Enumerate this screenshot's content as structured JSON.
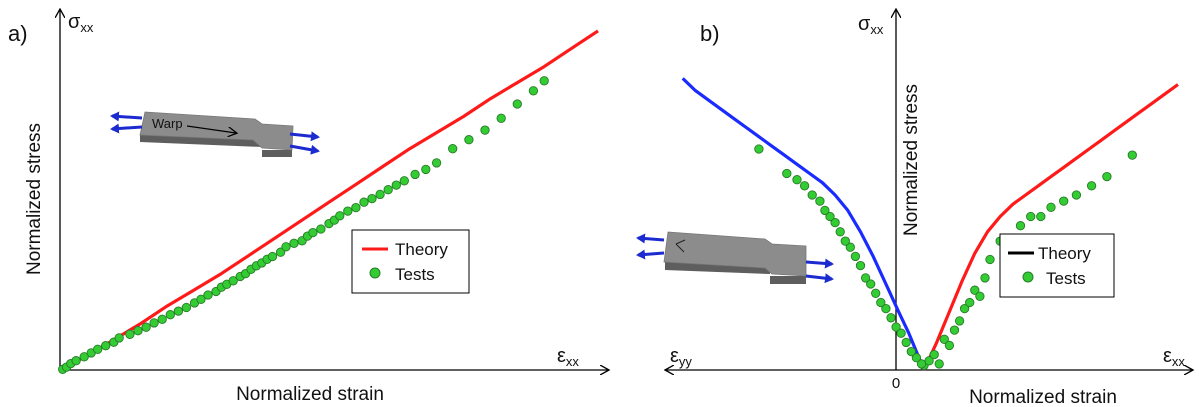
{
  "colors": {
    "theory_red": "#ff1a1a",
    "theory_blue": "#1a2bff",
    "tests_green": "#33cc33",
    "tests_edge": "#2a7a2a",
    "arrow_blue": "#1c2bd0",
    "specimen_gray": "#8c8c8c"
  },
  "chart_data": [
    {
      "panel_label": "a)",
      "type": "line",
      "xlabel": "Normalized strain",
      "ylabel": "Normalized stress",
      "x_axis_symbol": "ε",
      "x_axis_subscript": "xx",
      "y_axis_symbol": "σ",
      "y_axis_subscript": "xx",
      "xlim": [
        0,
        1
      ],
      "ylim": [
        0,
        1
      ],
      "grid": false,
      "legend_position": "center-right",
      "inset_label": "Warp",
      "series": [
        {
          "name": "Theory",
          "kind": "line",
          "color": "#ff1a1a",
          "x": [
            0,
            0.05,
            0.1,
            0.15,
            0.2,
            0.25,
            0.3,
            0.35,
            0.4,
            0.45,
            0.5,
            0.55,
            0.6,
            0.65,
            0.7,
            0.75,
            0.8,
            0.85,
            0.9,
            0.95,
            1.0
          ],
          "y": [
            0,
            0.04,
            0.085,
            0.13,
            0.18,
            0.225,
            0.27,
            0.32,
            0.37,
            0.42,
            0.47,
            0.52,
            0.57,
            0.62,
            0.665,
            0.71,
            0.76,
            0.805,
            0.85,
            0.9,
            0.95
          ]
        },
        {
          "name": "Tests",
          "kind": "scatter",
          "color": "#33cc33",
          "x": [
            0.005,
            0.012,
            0.02,
            0.03,
            0.045,
            0.058,
            0.07,
            0.085,
            0.1,
            0.11,
            0.13,
            0.145,
            0.16,
            0.175,
            0.19,
            0.205,
            0.22,
            0.235,
            0.25,
            0.262,
            0.275,
            0.29,
            0.3,
            0.31,
            0.322,
            0.335,
            0.345,
            0.355,
            0.365,
            0.375,
            0.385,
            0.395,
            0.41,
            0.42,
            0.435,
            0.45,
            0.46,
            0.47,
            0.485,
            0.5,
            0.51,
            0.52,
            0.535,
            0.55,
            0.565,
            0.58,
            0.595,
            0.61,
            0.625,
            0.64,
            0.66,
            0.68,
            0.7,
            0.73,
            0.76,
            0.79,
            0.82,
            0.85,
            0.88,
            0.9
          ],
          "y": [
            0.002,
            0.008,
            0.018,
            0.026,
            0.037,
            0.048,
            0.058,
            0.068,
            0.078,
            0.09,
            0.1,
            0.11,
            0.12,
            0.132,
            0.142,
            0.155,
            0.165,
            0.175,
            0.188,
            0.198,
            0.21,
            0.22,
            0.232,
            0.24,
            0.25,
            0.262,
            0.27,
            0.282,
            0.292,
            0.3,
            0.31,
            0.318,
            0.33,
            0.345,
            0.355,
            0.362,
            0.375,
            0.385,
            0.395,
            0.41,
            0.42,
            0.432,
            0.445,
            0.455,
            0.47,
            0.48,
            0.492,
            0.505,
            0.518,
            0.53,
            0.548,
            0.562,
            0.58,
            0.62,
            0.645,
            0.672,
            0.705,
            0.745,
            0.782,
            0.81
          ]
        }
      ]
    },
    {
      "panel_label": "b)",
      "type": "line",
      "xlabel": "Normalized strain",
      "ylabel": "Normalized stress",
      "x_axis_symbol": "ε",
      "x_axis_subscript": "xx",
      "x_axis_left_symbol": "ε",
      "x_axis_left_subscript": "yy",
      "y_axis_symbol": "σ",
      "y_axis_subscript": "xx",
      "origin_label": "0",
      "xlim": [
        -1,
        1
      ],
      "ylim": [
        0,
        1
      ],
      "grid": false,
      "legend_position": "center-right",
      "series": [
        {
          "name": "Theory",
          "kind": "line",
          "color": "#ff1a1a",
          "x": [
            0,
            0.05,
            0.1,
            0.15,
            0.2,
            0.25,
            0.3,
            0.35,
            0.4,
            0.45,
            0.5,
            0.55,
            0.6,
            0.65,
            0.7,
            0.75,
            0.8,
            0.85,
            0.9,
            0.95,
            1.0
          ],
          "y": [
            0,
            0.09,
            0.19,
            0.29,
            0.38,
            0.45,
            0.5,
            0.54,
            0.57,
            0.6,
            0.63,
            0.66,
            0.69,
            0.72,
            0.75,
            0.78,
            0.81,
            0.84,
            0.87,
            0.9,
            0.93
          ]
        },
        {
          "name": "Theory",
          "kind": "line",
          "color": "#1a2bff",
          "x": [
            0,
            -0.03,
            -0.06,
            -0.1,
            -0.15,
            -0.2,
            -0.25,
            -0.3,
            -0.35,
            -0.4,
            -0.45,
            -0.5,
            -0.55,
            -0.6,
            -0.65,
            -0.7,
            -0.75,
            -0.8,
            -0.85,
            -0.9,
            -0.95
          ],
          "y": [
            0,
            0.06,
            0.12,
            0.19,
            0.28,
            0.37,
            0.45,
            0.52,
            0.57,
            0.61,
            0.64,
            0.67,
            0.7,
            0.73,
            0.76,
            0.79,
            0.82,
            0.85,
            0.88,
            0.91,
            0.95
          ]
        },
        {
          "name": "Tests",
          "kind": "scatter",
          "color": "#33cc33",
          "x": [
            0.0,
            0.02,
            0.04,
            0.06,
            0.08,
            0.1,
            0.12,
            0.14,
            0.16,
            0.18,
            0.2,
            0.22,
            0.24,
            0.26,
            0.3,
            0.34,
            0.38,
            0.42,
            0.46,
            0.5,
            0.55,
            0.6,
            0.66,
            0.72,
            0.82,
            -0.01,
            -0.03,
            -0.05,
            -0.07,
            -0.09,
            -0.11,
            -0.13,
            -0.15,
            -0.17,
            -0.19,
            -0.21,
            -0.23,
            -0.25,
            -0.27,
            -0.29,
            -0.31,
            -0.33,
            -0.35,
            -0.37,
            -0.39,
            -0.41,
            -0.44,
            -0.47,
            -0.5,
            -0.54,
            -0.65
          ],
          "y": [
            0.015,
            0.03,
            0.05,
            0.02,
            0.1,
            0.08,
            0.13,
            0.16,
            0.2,
            0.22,
            0.26,
            0.24,
            0.3,
            0.36,
            0.42,
            0.43,
            0.47,
            0.5,
            0.5,
            0.53,
            0.55,
            0.57,
            0.6,
            0.63,
            0.7,
            0.02,
            0.04,
            0.06,
            0.09,
            0.12,
            0.14,
            0.17,
            0.2,
            0.22,
            0.25,
            0.28,
            0.3,
            0.34,
            0.37,
            0.4,
            0.42,
            0.45,
            0.48,
            0.5,
            0.52,
            0.55,
            0.57,
            0.6,
            0.62,
            0.64,
            0.72
          ]
        }
      ],
      "legend": [
        {
          "label": "Theory",
          "marker": "line",
          "color": "#000000"
        },
        {
          "label": "Tests",
          "marker": "dot",
          "color": "#33cc33"
        }
      ]
    }
  ]
}
